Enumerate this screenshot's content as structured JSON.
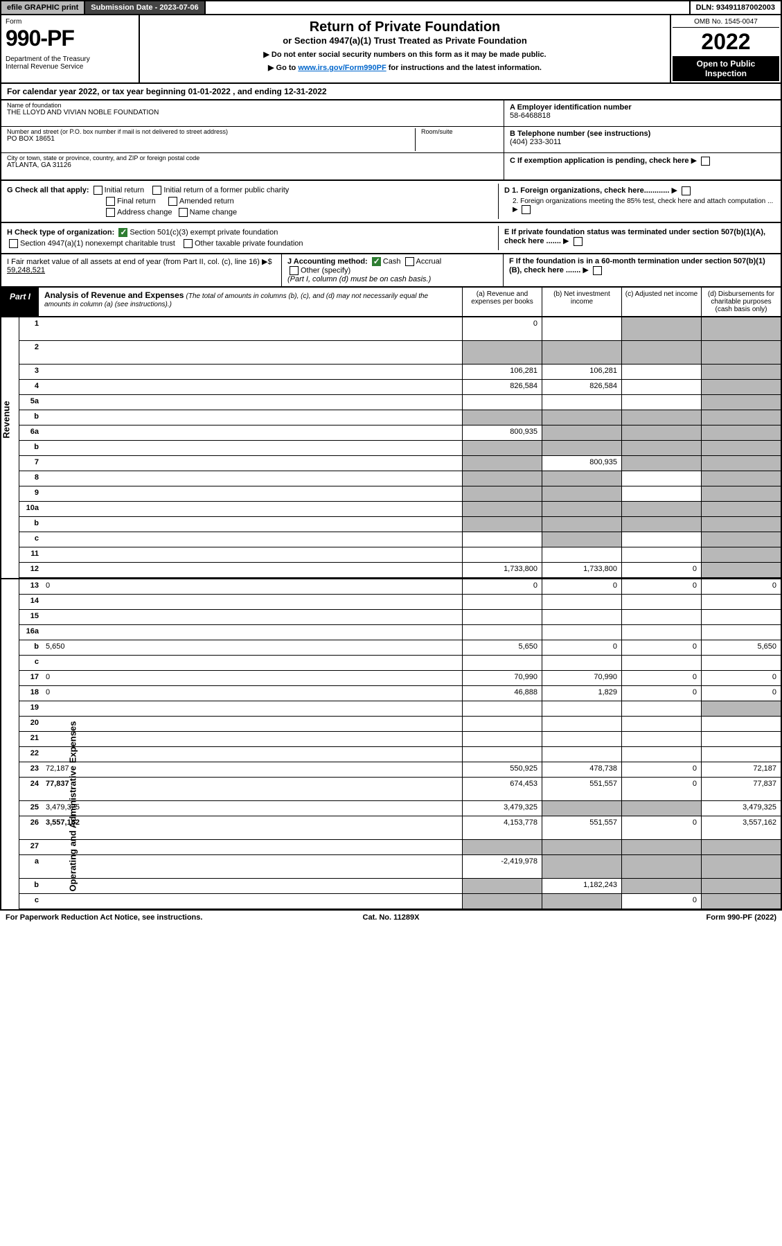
{
  "top": {
    "efile": "efile GRAPHIC print",
    "sub_label": "Submission Date - 2023-07-06",
    "dln": "DLN: 93491187002003"
  },
  "header": {
    "form_label": "Form",
    "form_num": "990-PF",
    "dept": "Department of the Treasury\nInternal Revenue Service",
    "title": "Return of Private Foundation",
    "subtitle": "or Section 4947(a)(1) Trust Treated as Private Foundation",
    "note1": "▶ Do not enter social security numbers on this form as it may be made public.",
    "note2_pre": "▶ Go to ",
    "note2_link": "www.irs.gov/Form990PF",
    "note2_post": " for instructions and the latest information.",
    "omb": "OMB No. 1545-0047",
    "year": "2022",
    "open": "Open to Public Inspection"
  },
  "cal": "For calendar year 2022, or tax year beginning 01-01-2022                , and ending 12-31-2022",
  "info": {
    "name_label": "Name of foundation",
    "name": "THE LLOYD AND VIVIAN NOBLE FOUNDATION",
    "addr_label": "Number and street (or P.O. box number if mail is not delivered to street address)",
    "addr": "PO BOX 18651",
    "room_label": "Room/suite",
    "city_label": "City or town, state or province, country, and ZIP or foreign postal code",
    "city": "ATLANTA, GA  31126",
    "ein_label": "A Employer identification number",
    "ein": "58-6468818",
    "tel_label": "B Telephone number (see instructions)",
    "tel": "(404) 233-3011",
    "c": "C If exemption application is pending, check here",
    "d1": "D 1. Foreign organizations, check here............",
    "d2": "2. Foreign organizations meeting the 85% test, check here and attach computation ...",
    "e": "E  If private foundation status was terminated under section 507(b)(1)(A), check here .......",
    "f": "F  If the foundation is in a 60-month termination under section 507(b)(1)(B), check here .......",
    "g_label": "G Check all that apply:",
    "g_initial": "Initial return",
    "g_initial_pub": "Initial return of a former public charity",
    "g_final": "Final return",
    "g_amended": "Amended return",
    "g_addr": "Address change",
    "g_name": "Name change",
    "h_label": "H Check type of organization:",
    "h_501": "Section 501(c)(3) exempt private foundation",
    "h_4947": "Section 4947(a)(1) nonexempt charitable trust",
    "h_other": "Other taxable private foundation",
    "i_label": "I Fair market value of all assets at end of year (from Part II, col. (c), line 16) ▶$",
    "i_value": "59,248,521",
    "j_label": "J Accounting method:",
    "j_cash": "Cash",
    "j_accrual": "Accrual",
    "j_other": "Other (specify)",
    "j_note": "(Part I, column (d) must be on cash basis.)"
  },
  "part1": {
    "label": "Part I",
    "title": "Analysis of Revenue and Expenses",
    "title_note": "(The total of amounts in columns (b), (c), and (d) may not necessarily equal the amounts in column (a) (see instructions).)",
    "col_a": "(a) Revenue and expenses per books",
    "col_b": "(b) Net investment income",
    "col_c": "(c) Adjusted net income",
    "col_d": "(d) Disbursements for charitable purposes (cash basis only)"
  },
  "rows": [
    {
      "n": "1",
      "d": "",
      "a": "0",
      "b": "",
      "c": "",
      "shade_c": true,
      "shade_d": true,
      "tall": true
    },
    {
      "n": "2",
      "d": "",
      "a": "",
      "b": "",
      "c": "",
      "shade_a": true,
      "shade_b": true,
      "shade_c": true,
      "shade_d": true,
      "tall": true
    },
    {
      "n": "3",
      "d": "",
      "a": "106,281",
      "b": "106,281",
      "c": "",
      "shade_d": true
    },
    {
      "n": "4",
      "d": "",
      "a": "826,584",
      "b": "826,584",
      "c": "",
      "shade_d": true
    },
    {
      "n": "5a",
      "d": "",
      "a": "",
      "b": "",
      "c": "",
      "shade_d": true
    },
    {
      "n": "b",
      "d": "",
      "a": "",
      "b": "",
      "c": "",
      "shade_a": true,
      "shade_b": true,
      "shade_c": true,
      "shade_d": true
    },
    {
      "n": "6a",
      "d": "",
      "a": "800,935",
      "b": "",
      "c": "",
      "shade_b": true,
      "shade_c": true,
      "shade_d": true
    },
    {
      "n": "b",
      "d": "",
      "a": "",
      "b": "",
      "c": "",
      "shade_a": true,
      "shade_b": true,
      "shade_c": true,
      "shade_d": true
    },
    {
      "n": "7",
      "d": "",
      "a": "",
      "b": "800,935",
      "c": "",
      "shade_a": true,
      "shade_c": true,
      "shade_d": true
    },
    {
      "n": "8",
      "d": "",
      "a": "",
      "b": "",
      "c": "",
      "shade_a": true,
      "shade_b": true,
      "shade_d": true
    },
    {
      "n": "9",
      "d": "",
      "a": "",
      "b": "",
      "c": "",
      "shade_a": true,
      "shade_b": true,
      "shade_d": true
    },
    {
      "n": "10a",
      "d": "",
      "a": "",
      "b": "",
      "c": "",
      "shade_a": true,
      "shade_b": true,
      "shade_c": true,
      "shade_d": true
    },
    {
      "n": "b",
      "d": "",
      "a": "",
      "b": "",
      "c": "",
      "shade_a": true,
      "shade_b": true,
      "shade_c": true,
      "shade_d": true
    },
    {
      "n": "c",
      "d": "",
      "a": "",
      "b": "",
      "c": "",
      "shade_b": true,
      "shade_d": true
    },
    {
      "n": "11",
      "d": "",
      "a": "",
      "b": "",
      "c": "",
      "shade_d": true
    },
    {
      "n": "12",
      "d": "",
      "a": "1,733,800",
      "b": "1,733,800",
      "c": "0",
      "bold": true,
      "shade_d": true
    },
    {
      "n": "13",
      "d": "0",
      "a": "0",
      "b": "0",
      "c": "0"
    },
    {
      "n": "14",
      "d": "",
      "a": "",
      "b": "",
      "c": ""
    },
    {
      "n": "15",
      "d": "",
      "a": "",
      "b": "",
      "c": ""
    },
    {
      "n": "16a",
      "d": "",
      "a": "",
      "b": "",
      "c": ""
    },
    {
      "n": "b",
      "d": "5,650",
      "a": "5,650",
      "b": "0",
      "c": "0"
    },
    {
      "n": "c",
      "d": "",
      "a": "",
      "b": "",
      "c": ""
    },
    {
      "n": "17",
      "d": "0",
      "a": "70,990",
      "b": "70,990",
      "c": "0"
    },
    {
      "n": "18",
      "d": "0",
      "a": "46,888",
      "b": "1,829",
      "c": "0"
    },
    {
      "n": "19",
      "d": "",
      "a": "",
      "b": "",
      "c": "",
      "shade_d": true
    },
    {
      "n": "20",
      "d": "",
      "a": "",
      "b": "",
      "c": ""
    },
    {
      "n": "21",
      "d": "",
      "a": "",
      "b": "",
      "c": ""
    },
    {
      "n": "22",
      "d": "",
      "a": "",
      "b": "",
      "c": ""
    },
    {
      "n": "23",
      "d": "72,187",
      "a": "550,925",
      "b": "478,738",
      "c": "0"
    },
    {
      "n": "24",
      "d": "77,837",
      "a": "674,453",
      "b": "551,557",
      "c": "0",
      "bold": true,
      "tall": true
    },
    {
      "n": "25",
      "d": "3,479,325",
      "a": "3,479,325",
      "b": "",
      "c": "",
      "shade_b": true,
      "shade_c": true
    },
    {
      "n": "26",
      "d": "3,557,162",
      "a": "4,153,778",
      "b": "551,557",
      "c": "0",
      "bold": true,
      "tall": true
    },
    {
      "n": "27",
      "d": "",
      "a": "",
      "b": "",
      "c": "",
      "shade_a": true,
      "shade_b": true,
      "shade_c": true,
      "shade_d": true
    },
    {
      "n": "a",
      "d": "",
      "a": "-2,419,978",
      "b": "",
      "c": "",
      "bold": true,
      "shade_b": true,
      "shade_c": true,
      "shade_d": true,
      "tall": true
    },
    {
      "n": "b",
      "d": "",
      "a": "",
      "b": "1,182,243",
      "c": "",
      "bold": true,
      "shade_a": true,
      "shade_c": true,
      "shade_d": true
    },
    {
      "n": "c",
      "d": "",
      "a": "",
      "b": "",
      "c": "0",
      "bold": true,
      "shade_a": true,
      "shade_b": true,
      "shade_d": true
    }
  ],
  "footer": {
    "left": "For Paperwork Reduction Act Notice, see instructions.",
    "mid": "Cat. No. 11289X",
    "right": "Form 990-PF (2022)"
  },
  "colors": {
    "shade": "#b8b8b8",
    "dark": "#444444",
    "green": "#2e7d32",
    "link": "#0066cc"
  }
}
